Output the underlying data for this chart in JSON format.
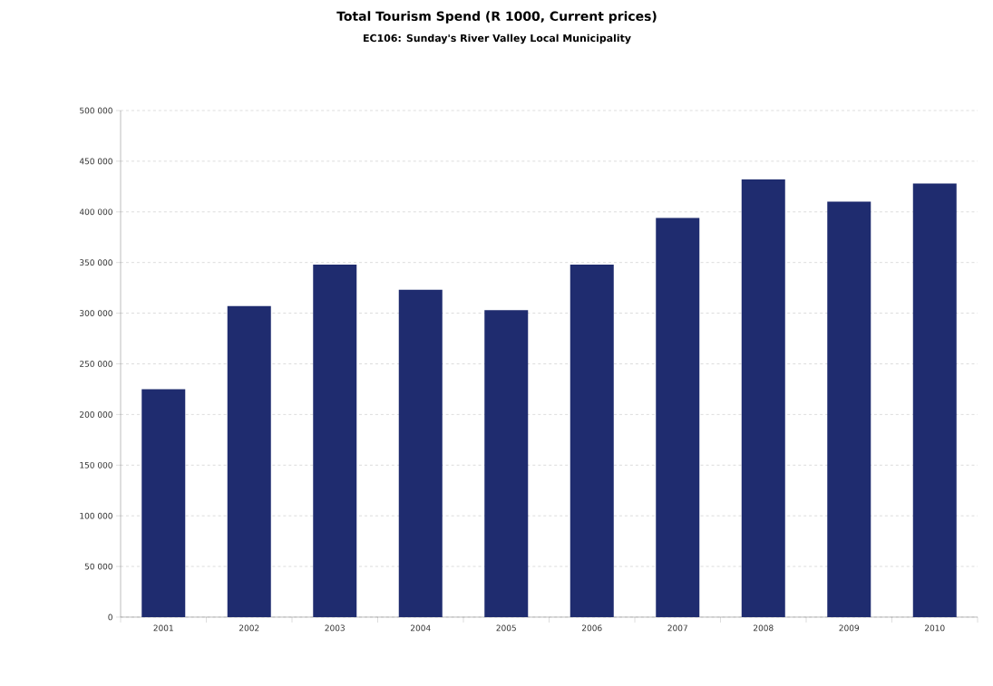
{
  "chart_data": {
    "type": "bar",
    "title": "Total Tourism Spend (R 1000, Current prices)",
    "subtitle": "EC106: Sunday's River Valley Local Municipality",
    "categories": [
      "2001",
      "2002",
      "2003",
      "2004",
      "2005",
      "2006",
      "2007",
      "2008",
      "2009",
      "2010"
    ],
    "values": [
      225000,
      307000,
      348000,
      323000,
      303000,
      348000,
      394000,
      432000,
      410000,
      428000
    ],
    "color": "#1f2c6f",
    "ylim": [
      0,
      500000
    ],
    "yticks": [
      0,
      {
        "value": 50000,
        "label": "50 000"
      },
      {
        "value": 100000,
        "label": "100 000"
      },
      {
        "value": 150000,
        "label": "150 000"
      },
      {
        "value": 200000,
        "label": "200 000"
      },
      {
        "value": 250000,
        "label": "250 000"
      },
      {
        "value": 300000,
        "label": "300 000"
      },
      {
        "value": 350000,
        "label": "350 000"
      },
      {
        "value": 400000,
        "label": "400 000"
      },
      {
        "value": 450000,
        "label": "450 000"
      },
      {
        "value": 500000,
        "label": "500 000"
      }
    ],
    "grid": "y"
  }
}
